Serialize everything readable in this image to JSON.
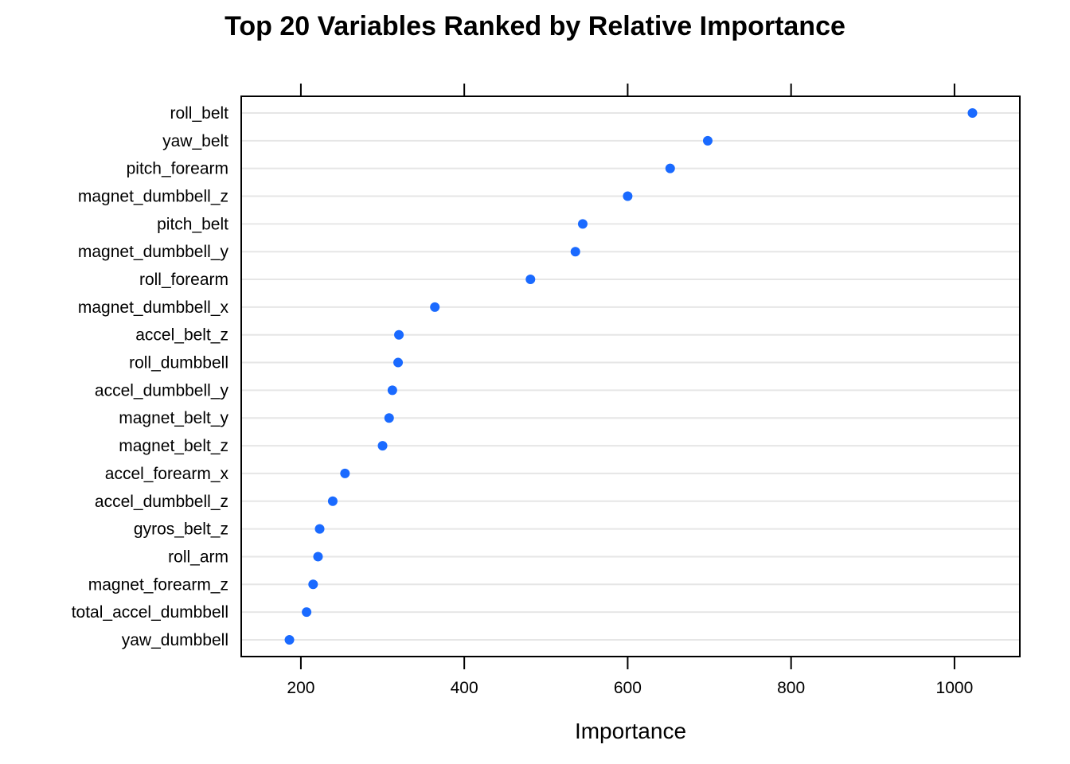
{
  "chart_data": {
    "type": "scatter",
    "title": "Top 20 Variables Ranked by Relative Importance",
    "xlabel": "Importance",
    "ylabel": "",
    "xlim": [
      127,
      1080
    ],
    "xticks": [
      200,
      400,
      600,
      800,
      1000
    ],
    "grid": true,
    "legend": "none",
    "point_color": "#1a6aff",
    "grid_color": "#e6e6e6",
    "categories": [
      "roll_belt",
      "yaw_belt",
      "pitch_forearm",
      "magnet_dumbbell_z",
      "pitch_belt",
      "magnet_dumbbell_y",
      "roll_forearm",
      "magnet_dumbbell_x",
      "accel_belt_z",
      "roll_dumbbell",
      "accel_dumbbell_y",
      "magnet_belt_y",
      "magnet_belt_z",
      "accel_forearm_x",
      "accel_dumbbell_z",
      "gyros_belt_z",
      "roll_arm",
      "magnet_forearm_z",
      "total_accel_dumbbell",
      "yaw_dumbbell"
    ],
    "values": [
      1022,
      698,
      652,
      600,
      545,
      536,
      481,
      364,
      320,
      319,
      312,
      308,
      300,
      254,
      239,
      223,
      221,
      215,
      207,
      186
    ]
  }
}
